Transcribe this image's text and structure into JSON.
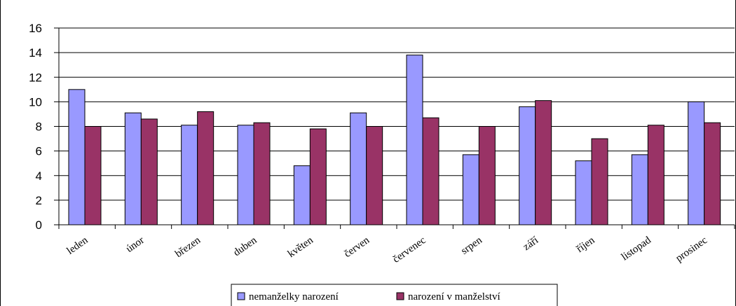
{
  "chart_data": {
    "type": "bar",
    "title": "",
    "xlabel": "",
    "ylabel": "",
    "categories": [
      "leden",
      "únor",
      "březen",
      "duben",
      "květen",
      "červen",
      "červenec",
      "srpen",
      "září",
      "říjen",
      "listopad",
      "prosinec"
    ],
    "series": [
      {
        "name": "nemanželky narození",
        "color": "#9999ff",
        "values": [
          11.0,
          9.1,
          8.1,
          8.1,
          4.8,
          9.1,
          13.8,
          5.7,
          9.6,
          5.2,
          5.7,
          10.0
        ]
      },
      {
        "name": "narození v manželství",
        "color": "#993366",
        "values": [
          8.0,
          8.6,
          9.2,
          8.3,
          7.8,
          8.0,
          8.7,
          8.0,
          10.1,
          7.0,
          8.1,
          8.3
        ]
      }
    ],
    "ylim": [
      0,
      16
    ],
    "yticks": [
      "0",
      "2",
      "4",
      "6",
      "8",
      "10",
      "12",
      "14",
      "16"
    ],
    "grid": true,
    "legend": "bottom"
  }
}
